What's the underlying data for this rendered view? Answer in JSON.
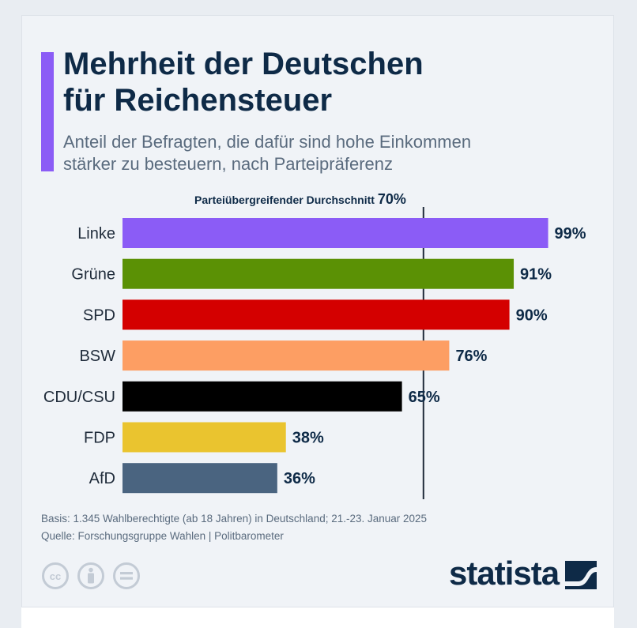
{
  "header": {
    "title_line1": "Mehrheit der Deutschen",
    "title_line2": "für Reichensteuer",
    "subtitle_line1": "Anteil der Befragten, die dafür sind hohe Einkommen",
    "subtitle_line2": "stärker zu besteuern, nach Parteipräferenz"
  },
  "colors": {
    "accent": "#8b5cf6",
    "reference_line": "#1f2b3a",
    "label_text": "#1f2b3a",
    "value_text": "#0e2a47"
  },
  "chart_data": {
    "type": "bar",
    "orientation": "horizontal",
    "title": "Mehrheit der Deutschen für Reichensteuer",
    "subtitle": "Anteil der Befragten, die dafür sind hohe Einkommen stärker zu besteuern, nach Parteipräferenz",
    "categories": [
      "Linke",
      "Grüne",
      "SPD",
      "BSW",
      "CDU/CSU",
      "FDP",
      "AfD"
    ],
    "values": [
      99,
      91,
      90,
      76,
      65,
      38,
      36
    ],
    "value_labels": [
      "99%",
      "91%",
      "90%",
      "76%",
      "65%",
      "38%",
      "36%"
    ],
    "bar_colors": [
      "#8b5cf6",
      "#5b9105",
      "#d40000",
      "#fd9e63",
      "#000000",
      "#eac42f",
      "#4a6480"
    ],
    "unit": "%",
    "xlim": [
      0,
      100
    ],
    "reference": {
      "label": "Parteiübergreifender Durchschnitt",
      "value": 70,
      "value_label": "70%"
    },
    "grid": false
  },
  "footer": {
    "basis": "Basis: 1.345 Wahlberechtigte (ab 18 Jahren) in Deutschland; 21.-23. Januar 2025",
    "source": "Quelle: Forschungsgruppe Wahlen | Politbarometer",
    "license_icons": [
      "creative-commons-icon",
      "attribution-icon",
      "no-derivatives-icon"
    ],
    "brand": "statista"
  }
}
